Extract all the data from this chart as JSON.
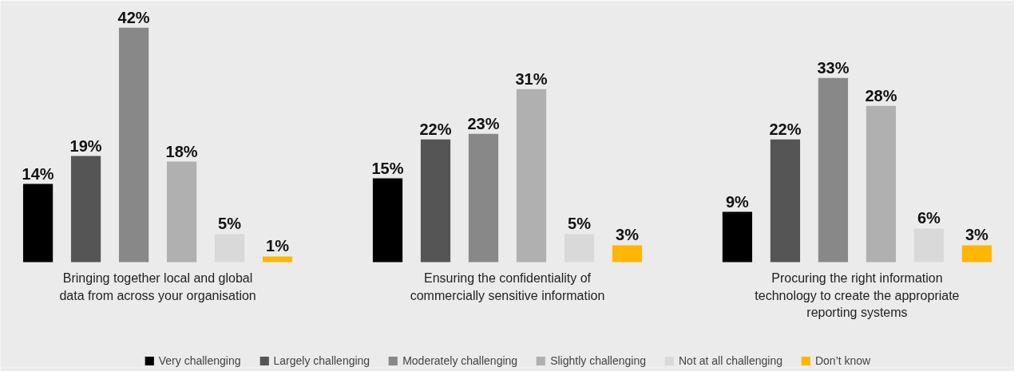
{
  "chart_data": {
    "type": "bar",
    "categories": [
      "Bringing together local and global data from across your organisation",
      "Ensuring the confidentiality of commercially sensitive information",
      "Procuring the right information technology to create the appropriate reporting systems"
    ],
    "series": [
      {
        "name": "Very challenging",
        "color": "#000000",
        "values": [
          14,
          15,
          9
        ],
        "value_labels": [
          "14%",
          "15%",
          "9%"
        ]
      },
      {
        "name": "Largely challenging",
        "color": "#555555",
        "values": [
          19,
          22,
          22
        ],
        "value_labels": [
          "19%",
          "22%",
          "22%"
        ]
      },
      {
        "name": "Moderately challenging",
        "color": "#888888",
        "values": [
          42,
          23,
          33
        ],
        "value_labels": [
          "42%",
          "23%",
          "33%"
        ]
      },
      {
        "name": "Slightly challenging",
        "color": "#b0b0b0",
        "values": [
          18,
          31,
          28
        ],
        "value_labels": [
          "18%",
          "31%",
          "28%"
        ]
      },
      {
        "name": "Not at all challenging",
        "color": "#d9d9d9",
        "values": [
          5,
          5,
          6
        ],
        "value_labels": [
          "5%",
          "5%",
          "6%"
        ]
      },
      {
        "name": "Don’t know",
        "color": "#ffb600",
        "values": [
          1,
          3,
          3
        ],
        "value_labels": [
          "1%",
          "3%",
          "3%"
        ]
      }
    ],
    "legend": "bottom"
  }
}
